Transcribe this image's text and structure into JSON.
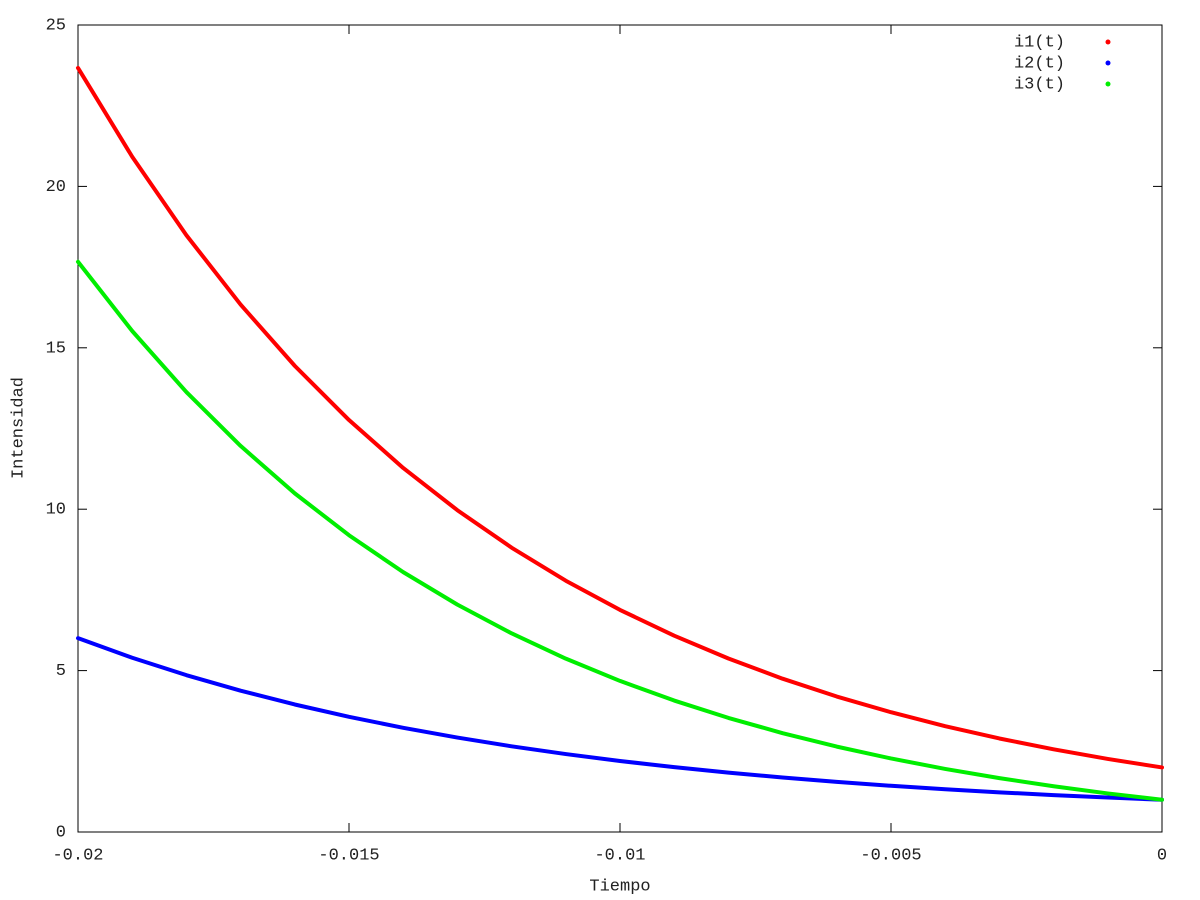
{
  "chart_data": {
    "type": "line",
    "x_label": "Tiempo",
    "y_label": "Intensidad",
    "x": [
      -0.02,
      -0.019,
      -0.018,
      -0.017,
      -0.016,
      -0.015,
      -0.014,
      -0.013,
      -0.012,
      -0.011,
      -0.01,
      -0.009,
      -0.008,
      -0.007,
      -0.006,
      -0.005,
      -0.004,
      -0.003,
      -0.002,
      -0.001,
      0
    ],
    "series": [
      {
        "name": "i1(t)",
        "color": "#ff0000",
        "values": [
          23.67,
          20.919,
          18.487,
          16.339,
          14.44,
          12.762,
          11.278,
          9.968,
          8.809,
          7.785,
          6.88,
          6.081,
          5.374,
          4.749,
          4.197,
          3.71,
          3.278,
          2.897,
          2.561,
          2.263,
          2.0
        ]
      },
      {
        "name": "i2(t)",
        "color": "#0000ff",
        "values": [
          6.005,
          5.399,
          4.859,
          4.379,
          3.95,
          3.568,
          3.228,
          2.925,
          2.655,
          2.415,
          2.2,
          2.009,
          1.839,
          1.687,
          1.552,
          1.432,
          1.324,
          1.229,
          1.143,
          1.068,
          1.0
        ]
      },
      {
        "name": "i3(t)",
        "color": "#00ee00",
        "values": [
          17.665,
          15.52,
          13.628,
          11.96,
          10.49,
          9.194,
          8.05,
          7.043,
          6.154,
          5.37,
          4.68,
          4.072,
          3.535,
          3.062,
          2.645,
          2.278,
          1.954,
          1.668,
          1.418,
          1.195,
          1.0
        ]
      }
    ],
    "xlim": [
      -0.02,
      0
    ],
    "xticks": [
      -0.02,
      -0.015,
      -0.01,
      -0.005,
      0
    ],
    "ylim": [
      0,
      25
    ],
    "yticks": [
      0,
      5,
      10,
      15,
      20,
      25
    ],
    "grid": false,
    "legend": "upper right"
  }
}
